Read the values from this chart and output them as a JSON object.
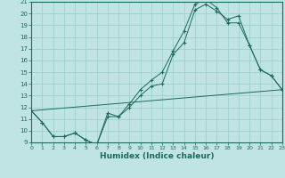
{
  "bg_color": "#c0e4e4",
  "line_color": "#1a6b5a",
  "grid_color": "#98cccc",
  "xlabel": "Humidex (Indice chaleur)",
  "xlim": [
    0,
    23
  ],
  "ylim": [
    9,
    21
  ],
  "xticks": [
    0,
    1,
    2,
    3,
    4,
    5,
    6,
    7,
    8,
    9,
    10,
    11,
    12,
    13,
    14,
    15,
    16,
    17,
    18,
    19,
    20,
    21,
    22,
    23
  ],
  "yticks": [
    9,
    10,
    11,
    12,
    13,
    14,
    15,
    16,
    17,
    18,
    19,
    20,
    21
  ],
  "line1_x": [
    0,
    1,
    2,
    3,
    4,
    5,
    6,
    7,
    8,
    9,
    10,
    11,
    12,
    13,
    14,
    15,
    16,
    17,
    18,
    19,
    20,
    21,
    22,
    23
  ],
  "line1_y": [
    11.7,
    10.7,
    9.5,
    9.5,
    9.8,
    9.2,
    8.8,
    11.2,
    11.2,
    12.0,
    13.0,
    13.8,
    14.0,
    16.5,
    17.5,
    20.3,
    20.8,
    20.2,
    19.5,
    19.8,
    17.3,
    15.2,
    14.7,
    13.5
  ],
  "line2_x": [
    0,
    1,
    2,
    3,
    4,
    5,
    6,
    7,
    8,
    9,
    10,
    11,
    12,
    13,
    14,
    15,
    16,
    17,
    18,
    19,
    20,
    21,
    22,
    23
  ],
  "line2_y": [
    11.7,
    10.7,
    9.5,
    9.5,
    9.8,
    9.2,
    8.8,
    11.5,
    11.2,
    12.3,
    13.5,
    14.3,
    15.0,
    16.8,
    18.5,
    20.8,
    21.2,
    20.5,
    19.2,
    19.2,
    17.3,
    15.2,
    14.7,
    13.5
  ],
  "line3_x": [
    0,
    23
  ],
  "line3_y": [
    11.7,
    13.5
  ]
}
